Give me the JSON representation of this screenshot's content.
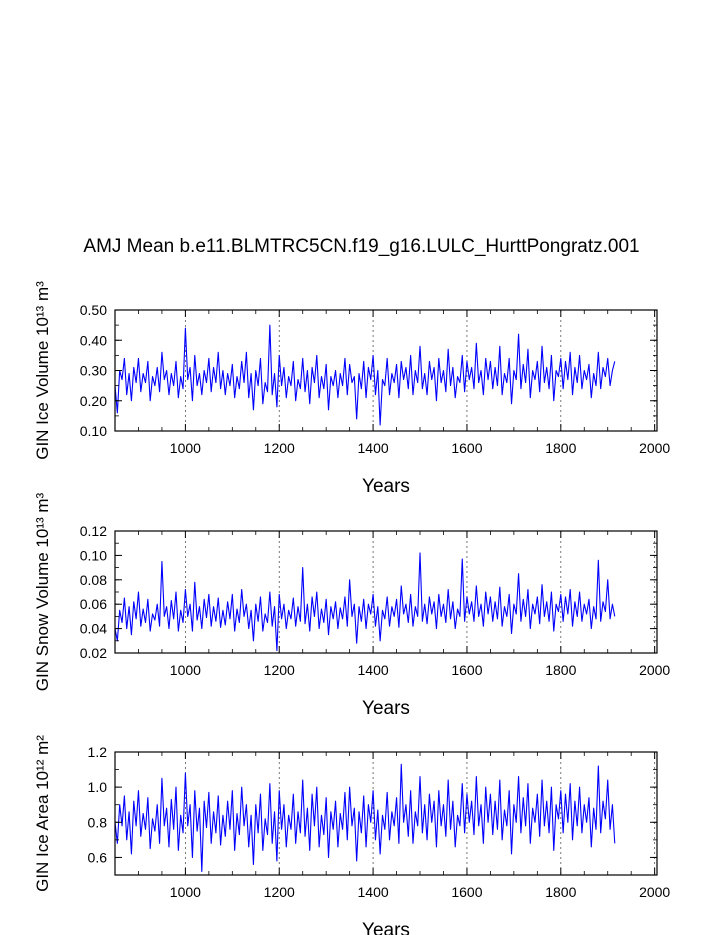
{
  "title": "AMJ Mean b.e11.BLMTRC5CN.f19_g16.LULC_HurttPongratz.001",
  "colors": {
    "line": "#0000ff",
    "axis": "#000000",
    "grid": "#555555"
  },
  "chart_data": [
    {
      "type": "line",
      "id": "ice-volume",
      "ylabel": "GIN Ice Volume 10¹³ m³",
      "xlabel": "Years",
      "xlim": [
        850,
        2005
      ],
      "ylim": [
        0.1,
        0.5
      ],
      "xticks": [
        1000,
        1200,
        1400,
        1600,
        1800,
        2000
      ],
      "yticks": [
        "0.10",
        "0.20",
        "0.30",
        "0.40",
        "0.50"
      ],
      "grid_x": [
        1000,
        1200,
        1400,
        1600,
        1800,
        2000
      ],
      "series": [
        {
          "name": "GIN Ice Volume",
          "x_start": 850,
          "x_step": 5,
          "values": [
            0.25,
            0.16,
            0.3,
            0.27,
            0.34,
            0.22,
            0.29,
            0.2,
            0.31,
            0.26,
            0.34,
            0.23,
            0.29,
            0.26,
            0.33,
            0.2,
            0.28,
            0.25,
            0.31,
            0.23,
            0.36,
            0.27,
            0.3,
            0.22,
            0.29,
            0.25,
            0.33,
            0.21,
            0.28,
            0.24,
            0.44,
            0.27,
            0.31,
            0.2,
            0.35,
            0.25,
            0.29,
            0.22,
            0.3,
            0.26,
            0.34,
            0.23,
            0.31,
            0.26,
            0.36,
            0.24,
            0.3,
            0.22,
            0.29,
            0.25,
            0.32,
            0.21,
            0.28,
            0.24,
            0.33,
            0.26,
            0.36,
            0.21,
            0.29,
            0.17,
            0.3,
            0.25,
            0.34,
            0.19,
            0.26,
            0.23,
            0.45,
            0.22,
            0.29,
            0.18,
            0.35,
            0.25,
            0.31,
            0.21,
            0.28,
            0.25,
            0.33,
            0.2,
            0.27,
            0.24,
            0.34,
            0.23,
            0.3,
            0.19,
            0.31,
            0.26,
            0.35,
            0.21,
            0.28,
            0.24,
            0.32,
            0.17,
            0.28,
            0.25,
            0.3,
            0.21,
            0.29,
            0.25,
            0.34,
            0.22,
            0.32,
            0.26,
            0.28,
            0.14,
            0.29,
            0.24,
            0.33,
            0.21,
            0.31,
            0.27,
            0.35,
            0.22,
            0.3,
            0.12,
            0.27,
            0.25,
            0.34,
            0.22,
            0.29,
            0.26,
            0.32,
            0.21,
            0.33,
            0.27,
            0.31,
            0.24,
            0.35,
            0.22,
            0.3,
            0.26,
            0.38,
            0.24,
            0.29,
            0.22,
            0.33,
            0.27,
            0.31,
            0.2,
            0.34,
            0.26,
            0.3,
            0.23,
            0.37,
            0.25,
            0.31,
            0.21,
            0.28,
            0.26,
            0.35,
            0.23,
            0.33,
            0.27,
            0.31,
            0.24,
            0.39,
            0.26,
            0.3,
            0.22,
            0.34,
            0.27,
            0.33,
            0.24,
            0.31,
            0.25,
            0.38,
            0.22,
            0.29,
            0.26,
            0.34,
            0.19,
            0.3,
            0.27,
            0.42,
            0.24,
            0.32,
            0.26,
            0.37,
            0.21,
            0.3,
            0.27,
            0.33,
            0.23,
            0.38,
            0.26,
            0.31,
            0.24,
            0.35,
            0.2,
            0.3,
            0.28,
            0.34,
            0.24,
            0.33,
            0.27,
            0.36,
            0.22,
            0.31,
            0.26,
            0.35,
            0.24,
            0.3,
            0.27,
            0.32,
            0.21,
            0.29,
            0.25,
            0.36,
            0.24,
            0.31,
            0.28,
            0.34,
            0.25,
            0.3,
            0.33
          ]
        }
      ]
    },
    {
      "type": "line",
      "id": "snow-volume",
      "ylabel": "GIN Snow Volume 10¹³ m³",
      "xlabel": "Years",
      "xlim": [
        850,
        2005
      ],
      "ylim": [
        0.02,
        0.12
      ],
      "xticks": [
        1000,
        1200,
        1400,
        1600,
        1800,
        2000
      ],
      "yticks": [
        "0.02",
        "0.04",
        "0.06",
        "0.08",
        "0.10",
        "0.12"
      ],
      "grid_x": [
        1000,
        1200,
        1400,
        1600,
        1800,
        2000
      ],
      "series": [
        {
          "name": "GIN Snow Volume",
          "x_start": 850,
          "x_step": 5,
          "values": [
            0.04,
            0.03,
            0.055,
            0.045,
            0.065,
            0.04,
            0.058,
            0.035,
            0.062,
            0.048,
            0.07,
            0.042,
            0.056,
            0.045,
            0.064,
            0.038,
            0.052,
            0.047,
            0.06,
            0.042,
            0.095,
            0.05,
            0.058,
            0.04,
            0.063,
            0.048,
            0.07,
            0.038,
            0.055,
            0.045,
            0.072,
            0.05,
            0.06,
            0.038,
            0.078,
            0.047,
            0.058,
            0.04,
            0.064,
            0.049,
            0.068,
            0.042,
            0.058,
            0.046,
            0.065,
            0.041,
            0.055,
            0.043,
            0.062,
            0.048,
            0.068,
            0.038,
            0.056,
            0.045,
            0.072,
            0.05,
            0.06,
            0.04,
            0.055,
            0.03,
            0.06,
            0.046,
            0.066,
            0.038,
            0.052,
            0.045,
            0.07,
            0.042,
            0.058,
            0.022,
            0.068,
            0.048,
            0.06,
            0.04,
            0.055,
            0.048,
            0.065,
            0.042,
            0.058,
            0.046,
            0.09,
            0.044,
            0.06,
            0.038,
            0.066,
            0.05,
            0.07,
            0.04,
            0.056,
            0.045,
            0.064,
            0.035,
            0.058,
            0.048,
            0.062,
            0.04,
            0.057,
            0.048,
            0.066,
            0.042,
            0.08,
            0.05,
            0.06,
            0.028,
            0.058,
            0.046,
            0.064,
            0.04,
            0.06,
            0.052,
            0.068,
            0.042,
            0.058,
            0.03,
            0.055,
            0.048,
            0.066,
            0.042,
            0.058,
            0.05,
            0.064,
            0.041,
            0.075,
            0.052,
            0.06,
            0.045,
            0.068,
            0.042,
            0.058,
            0.05,
            0.102,
            0.046,
            0.06,
            0.044,
            0.066,
            0.052,
            0.062,
            0.04,
            0.068,
            0.05,
            0.06,
            0.045,
            0.072,
            0.048,
            0.062,
            0.04,
            0.056,
            0.05,
            0.097,
            0.046,
            0.066,
            0.052,
            0.062,
            0.046,
            0.075,
            0.05,
            0.06,
            0.042,
            0.07,
            0.052,
            0.066,
            0.046,
            0.062,
            0.048,
            0.074,
            0.042,
            0.058,
            0.05,
            0.068,
            0.036,
            0.06,
            0.052,
            0.085,
            0.046,
            0.064,
            0.05,
            0.072,
            0.04,
            0.06,
            0.052,
            0.066,
            0.044,
            0.076,
            0.05,
            0.062,
            0.046,
            0.07,
            0.038,
            0.06,
            0.054,
            0.068,
            0.046,
            0.066,
            0.052,
            0.072,
            0.042,
            0.062,
            0.05,
            0.07,
            0.046,
            0.06,
            0.052,
            0.064,
            0.04,
            0.058,
            0.048,
            0.096,
            0.046,
            0.062,
            0.054,
            0.08,
            0.048,
            0.06,
            0.05
          ]
        }
      ]
    },
    {
      "type": "line",
      "id": "ice-area",
      "ylabel": "GIN Ice Area 10¹² m²",
      "xlabel": "Years",
      "xlim": [
        850,
        2005
      ],
      "ylim": [
        0.5,
        1.2
      ],
      "xticks": [
        1000,
        1200,
        1400,
        1600,
        1800,
        2000
      ],
      "yticks": [
        "0.6",
        "0.8",
        "1.0",
        "1.2"
      ],
      "ytick_values": [
        0.6,
        0.8,
        1.0,
        1.2
      ],
      "grid_x": [
        1000,
        1200,
        1400,
        1600,
        1800,
        2000
      ],
      "series": [
        {
          "name": "GIN Ice Area",
          "x_start": 850,
          "x_step": 5,
          "values": [
            0.8,
            0.68,
            0.9,
            0.78,
            0.95,
            0.7,
            0.86,
            0.62,
            0.92,
            0.78,
            0.98,
            0.72,
            0.85,
            0.76,
            0.94,
            0.65,
            0.82,
            0.75,
            0.9,
            0.68,
            1.05,
            0.78,
            0.88,
            0.66,
            0.93,
            0.76,
            1.0,
            0.64,
            0.84,
            0.74,
            1.08,
            0.78,
            0.9,
            0.6,
            0.98,
            0.75,
            0.88,
            0.52,
            0.92,
            0.77,
            0.97,
            0.68,
            0.86,
            0.74,
            0.95,
            0.67,
            0.84,
            0.72,
            0.92,
            0.76,
            0.98,
            0.64,
            0.85,
            0.73,
            1.0,
            0.78,
            0.9,
            0.66,
            0.84,
            0.56,
            0.9,
            0.74,
            0.96,
            0.64,
            0.82,
            0.73,
            1.02,
            0.68,
            0.86,
            0.58,
            0.98,
            0.76,
            0.9,
            0.66,
            0.84,
            0.76,
            0.96,
            0.68,
            0.86,
            0.74,
            1.04,
            0.72,
            0.88,
            0.64,
            0.96,
            0.78,
            1.0,
            0.66,
            0.84,
            0.73,
            0.94,
            0.6,
            0.86,
            0.76,
            0.92,
            0.66,
            0.85,
            0.76,
            0.97,
            0.7,
            1.0,
            0.78,
            0.88,
            0.58,
            0.86,
            0.74,
            0.95,
            0.66,
            0.9,
            0.8,
            0.98,
            0.7,
            0.87,
            0.62,
            0.84,
            0.76,
            0.97,
            0.7,
            0.86,
            0.78,
            0.94,
            0.68,
            1.13,
            0.8,
            0.9,
            0.72,
            0.98,
            0.68,
            0.86,
            0.78,
            1.06,
            0.74,
            0.9,
            0.7,
            0.96,
            0.8,
            0.92,
            0.66,
            0.98,
            0.78,
            0.9,
            0.72,
            1.04,
            0.76,
            0.92,
            0.66,
            0.84,
            0.78,
            1.02,
            0.74,
            0.96,
            0.8,
            0.92,
            0.73,
            1.06,
            0.78,
            0.9,
            0.68,
            1.0,
            0.8,
            0.96,
            0.73,
            0.92,
            0.76,
            1.04,
            0.7,
            0.87,
            0.78,
            0.98,
            0.62,
            0.9,
            0.8,
            1.06,
            0.74,
            0.94,
            0.78,
            1.02,
            0.68,
            0.88,
            0.8,
            0.96,
            0.72,
            1.04,
            0.78,
            0.92,
            0.74,
            1.0,
            0.64,
            0.9,
            0.82,
            0.98,
            0.74,
            0.96,
            0.8,
            1.02,
            0.7,
            0.92,
            0.78,
            1.0,
            0.74,
            0.9,
            0.8,
            0.94,
            0.66,
            0.88,
            0.76,
            1.12,
            0.74,
            0.92,
            0.82,
            1.04,
            0.76,
            0.9,
            0.68
          ]
        }
      ]
    }
  ]
}
